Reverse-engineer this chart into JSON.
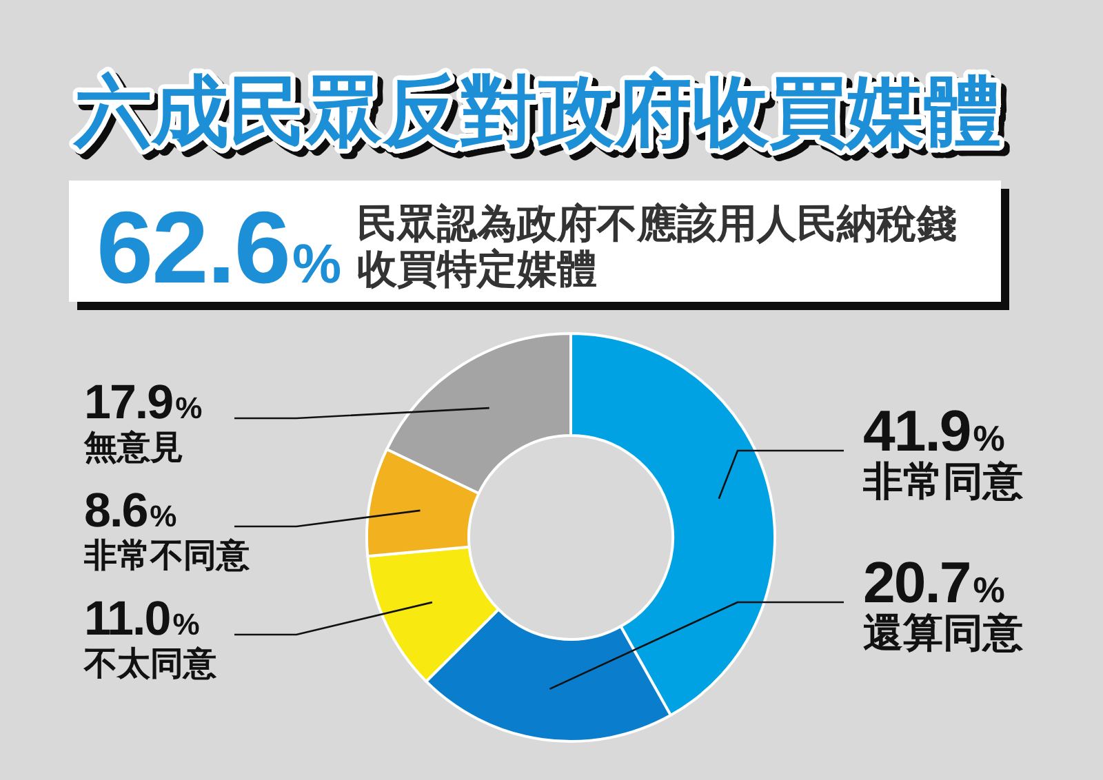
{
  "chart_data": {
    "type": "donut",
    "title": "六成民眾反對政府收買媒體",
    "subtitle": "民眾認為政府不應該用人民納稅錢收買特定媒體",
    "annotations": [
      "62.6%"
    ],
    "categories": [
      "非常同意",
      "還算同意",
      "不太同意",
      "非常不同意",
      "無意見"
    ],
    "values": [
      41.9,
      20.7,
      11.0,
      8.6,
      17.9
    ],
    "colors": [
      "#00a2e3",
      "#0a7ecd",
      "#f8ea10",
      "#f2b11f",
      "#a4a4a4"
    ],
    "value_labels": [
      "41.9%",
      "20.7%",
      "11.0%",
      "8.6%",
      "17.9%"
    ]
  }
}
